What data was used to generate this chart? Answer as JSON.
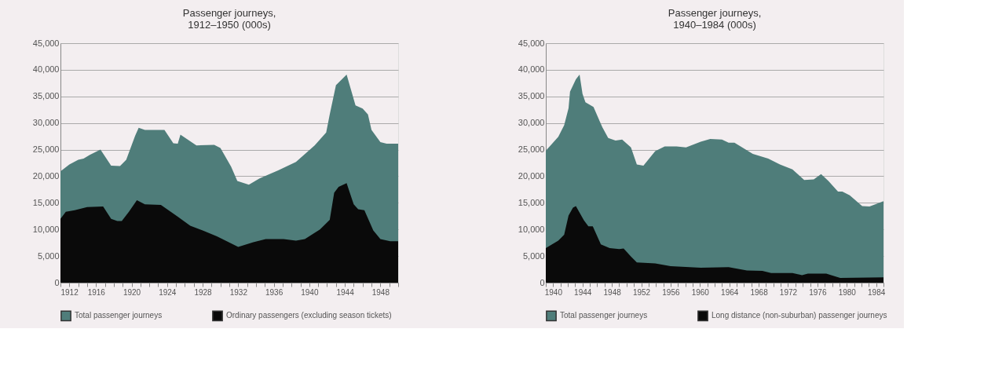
{
  "chart_data": [
    {
      "type": "area",
      "title": "Passenger journeys,\n1912–1950 (000s)",
      "legend": "bottom",
      "grid": "y",
      "xlim": [
        1912,
        1950
      ],
      "ylim": [
        0,
        45000
      ],
      "yticks": [
        0,
        {
          "value": 5000,
          "label": "5,000"
        },
        {
          "value": 10000,
          "label": "10,000"
        },
        {
          "value": 15000,
          "label": "15,000"
        },
        {
          "value": 20000,
          "label": "20,000"
        },
        {
          "value": 25000,
          "label": "25,000"
        },
        {
          "value": 30000,
          "label": "30,000"
        },
        {
          "value": 35000,
          "label": "35,000"
        },
        {
          "value": 40000,
          "label": "40,000"
        },
        {
          "value": 45000,
          "label": "45,000"
        }
      ],
      "xticks": [
        1912,
        {
          "value": 1913,
          "label": null
        },
        {
          "value": 1914,
          "label": null
        },
        {
          "value": 1915,
          "label": null
        },
        1916,
        {
          "value": 1917,
          "label": null
        },
        {
          "value": 1918,
          "label": null
        },
        {
          "value": 1919,
          "label": null
        },
        1920,
        {
          "value": 1921,
          "label": null
        },
        {
          "value": 1922,
          "label": null
        },
        {
          "value": 1923,
          "label": null
        },
        1924,
        {
          "value": 1925,
          "label": null
        },
        {
          "value": 1926,
          "label": null
        },
        {
          "value": 1927,
          "label": null
        },
        1928,
        {
          "value": 1929,
          "label": null
        },
        {
          "value": 1930,
          "label": null
        },
        {
          "value": 1931,
          "label": null
        },
        1932,
        {
          "value": 1933,
          "label": null
        },
        {
          "value": 1934,
          "label": null
        },
        {
          "value": 1935,
          "label": null
        },
        1936,
        {
          "value": 1937,
          "label": null
        },
        {
          "value": 1938,
          "label": null
        },
        {
          "value": 1939,
          "label": null
        },
        1940,
        {
          "value": 1941,
          "label": null
        },
        {
          "value": 1942,
          "label": null
        },
        {
          "value": 1943,
          "label": null
        },
        1944,
        {
          "value": 1945,
          "label": null
        },
        {
          "value": 1946,
          "label": null
        },
        {
          "value": 1947,
          "label": null
        },
        1948,
        {
          "value": 1949,
          "label": null
        },
        {
          "value": 1950,
          "label": null
        }
      ],
      "series": [
        {
          "name": "Total passenger journeys",
          "color": "#4f7d7a",
          "x": [
            1912,
            1913,
            1914,
            1914.6,
            1915.3,
            1916.5,
            1917.7,
            1918.7,
            1919.4,
            1920.4,
            1920.8,
            1921.5,
            1923.7,
            1924.7,
            1925.2,
            1925.5,
            1927.3,
            1929.3,
            1930,
            1931.2,
            1931.9,
            1933.2,
            1934.4,
            1936.5,
            1938.5,
            1940.6,
            1941.9,
            1942.3,
            1943,
            1944.2,
            1945.2,
            1946,
            1946.6,
            1947,
            1948,
            1948.7,
            1950
          ],
          "values": [
            20900,
            22200,
            23100,
            23300,
            24000,
            25000,
            22000,
            21900,
            23100,
            27600,
            29100,
            28700,
            28700,
            26200,
            26100,
            27800,
            25800,
            25900,
            25300,
            21800,
            19100,
            18400,
            19600,
            21100,
            22700,
            25800,
            28200,
            31600,
            37100,
            39100,
            33300,
            32700,
            31600,
            28700,
            26400,
            26100,
            26100
          ]
        },
        {
          "name": "Ordinary passengers (excluding season tickets)",
          "color": "#0a0a0a",
          "x": [
            1912,
            1912.6,
            1913.6,
            1915,
            1916.8,
            1917.7,
            1918.4,
            1918.9,
            1919.7,
            1920.6,
            1921.5,
            1923.3,
            1925.2,
            1926.6,
            1928,
            1929.6,
            1932,
            1933.7,
            1935.1,
            1937.1,
            1938.5,
            1939.5,
            1941.2,
            1942.3,
            1942.8,
            1943.3,
            1944.2,
            1945,
            1945.5,
            1946.2,
            1947.2,
            1948,
            1949.1,
            1950
          ],
          "values": [
            12000,
            13300,
            13600,
            14200,
            14300,
            12000,
            11600,
            11600,
            13300,
            15500,
            14700,
            14600,
            12400,
            10700,
            9800,
            8700,
            6700,
            7600,
            8200,
            8200,
            7900,
            8200,
            10000,
            11800,
            16900,
            18000,
            18700,
            14700,
            13800,
            13600,
            9800,
            8200,
            7800,
            7800
          ]
        }
      ]
    },
    {
      "type": "area",
      "title": "Passenger journeys,\n1940–1984 (000s)",
      "legend": "bottom",
      "grid": "y",
      "xlim": [
        1939,
        1985
      ],
      "ylim": [
        0,
        45000
      ],
      "yticks": [
        0,
        {
          "value": 5000,
          "label": "5,000"
        },
        {
          "value": 10000,
          "label": "10,000"
        },
        {
          "value": 15000,
          "label": "15,000"
        },
        {
          "value": 20000,
          "label": "20,000"
        },
        {
          "value": 25000,
          "label": "25,000"
        },
        {
          "value": 30000,
          "label": "30,000"
        },
        {
          "value": 35000,
          "label": "35,000"
        },
        {
          "value": 40000,
          "label": "40,000"
        },
        {
          "value": 45000,
          "label": "45,000"
        }
      ],
      "xticks": [
        {
          "value": 1939,
          "label": null
        },
        1940,
        {
          "value": 1941,
          "label": null
        },
        {
          "value": 1942,
          "label": null
        },
        {
          "value": 1943,
          "label": null
        },
        1944,
        {
          "value": 1945,
          "label": null
        },
        {
          "value": 1946,
          "label": null
        },
        {
          "value": 1947,
          "label": null
        },
        1948,
        {
          "value": 1949,
          "label": null
        },
        {
          "value": 1950,
          "label": null
        },
        {
          "value": 1951,
          "label": null
        },
        1952,
        {
          "value": 1953,
          "label": null
        },
        {
          "value": 1954,
          "label": null
        },
        {
          "value": 1955,
          "label": null
        },
        1956,
        {
          "value": 1957,
          "label": null
        },
        {
          "value": 1958,
          "label": null
        },
        {
          "value": 1959,
          "label": null
        },
        1960,
        {
          "value": 1961,
          "label": null
        },
        {
          "value": 1962,
          "label": null
        },
        {
          "value": 1963,
          "label": null
        },
        1964,
        {
          "value": 1965,
          "label": null
        },
        {
          "value": 1966,
          "label": null
        },
        {
          "value": 1967,
          "label": null
        },
        1968,
        {
          "value": 1969,
          "label": null
        },
        {
          "value": 1970,
          "label": null
        },
        {
          "value": 1971,
          "label": null
        },
        1972,
        {
          "value": 1973,
          "label": null
        },
        {
          "value": 1974,
          "label": null
        },
        {
          "value": 1975,
          "label": null
        },
        1976,
        {
          "value": 1977,
          "label": null
        },
        {
          "value": 1978,
          "label": null
        },
        {
          "value": 1979,
          "label": null
        },
        1980,
        {
          "value": 1981,
          "label": null
        },
        {
          "value": 1982,
          "label": null
        },
        {
          "value": 1983,
          "label": null
        },
        1984,
        {
          "value": 1985,
          "label": null
        }
      ],
      "series": [
        {
          "name": "Total passenger journeys",
          "color": "#4f7d7a",
          "x": [
            1939,
            1940.7,
            1941.5,
            1942.1,
            1942.3,
            1943.1,
            1943.6,
            1944,
            1944.4,
            1945.5,
            1946.7,
            1947.5,
            1948.5,
            1949.4,
            1950.6,
            1951.4,
            1952.3,
            1953.9,
            1955.2,
            1956.8,
            1958.1,
            1960.1,
            1961.4,
            1963,
            1963.9,
            1964.7,
            1967.2,
            1969.3,
            1970.9,
            1972.6,
            1974.2,
            1975.5,
            1976.5,
            1977.5,
            1978.8,
            1979.4,
            1980.4,
            1982.1,
            1983.1,
            1985
          ],
          "values": [
            24800,
            27400,
            29600,
            32800,
            35900,
            38200,
            39100,
            35500,
            33900,
            33000,
            29200,
            27200,
            26700,
            26900,
            25400,
            22200,
            22000,
            24700,
            25600,
            25600,
            25400,
            26500,
            27000,
            26900,
            26300,
            26300,
            24200,
            23300,
            22200,
            21300,
            19300,
            19400,
            20400,
            19100,
            17100,
            17100,
            16400,
            14400,
            14300,
            15300
          ]
        },
        {
          "name": "Long distance (non-suburban) passenger journeys",
          "color": "#0a0a0a",
          "x": [
            1939,
            1940.7,
            1941.5,
            1942.1,
            1942.7,
            1943.1,
            1944.2,
            1944.8,
            1945.4,
            1946.5,
            1947.7,
            1949,
            1949.6,
            1950.6,
            1951.4,
            1953.9,
            1956,
            1960.1,
            1963.9,
            1966.4,
            1968.5,
            1969.7,
            1972.6,
            1973.9,
            1974.7,
            1977.2,
            1979.1,
            1985
          ],
          "values": [
            6500,
            7900,
            9000,
            12600,
            14100,
            14400,
            11700,
            10600,
            10600,
            7200,
            6500,
            6300,
            6400,
            4900,
            3800,
            3600,
            3100,
            2800,
            2900,
            2300,
            2200,
            1800,
            1800,
            1400,
            1700,
            1700,
            900,
            1000
          ]
        }
      ]
    }
  ]
}
